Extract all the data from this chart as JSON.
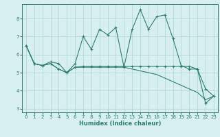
{
  "xlabel": "Humidex (Indice chaleur)",
  "x_values": [
    0,
    1,
    2,
    3,
    4,
    5,
    6,
    7,
    8,
    9,
    10,
    11,
    12,
    13,
    14,
    15,
    16,
    17,
    18,
    19,
    20,
    21,
    22,
    23
  ],
  "line1": [
    6.5,
    5.5,
    5.4,
    5.6,
    5.5,
    5.0,
    5.5,
    7.0,
    6.3,
    7.4,
    7.1,
    7.5,
    5.3,
    7.4,
    8.5,
    7.4,
    8.1,
    8.2,
    6.9,
    5.4,
    5.2,
    5.2,
    4.1,
    3.7
  ],
  "line2": [
    6.5,
    5.5,
    5.4,
    5.5,
    5.2,
    5.0,
    5.3,
    5.35,
    5.35,
    5.35,
    5.35,
    5.35,
    5.35,
    5.35,
    5.35,
    5.35,
    5.35,
    5.35,
    5.35,
    5.35,
    5.35,
    5.2,
    3.3,
    3.7
  ],
  "line3": [
    6.5,
    5.5,
    5.4,
    5.5,
    5.2,
    5.0,
    5.3,
    5.3,
    5.3,
    5.3,
    5.3,
    5.3,
    5.3,
    5.2,
    5.1,
    5.0,
    4.9,
    4.7,
    4.5,
    4.3,
    4.1,
    3.9,
    3.5,
    3.7
  ],
  "line_color": "#2d7d6e",
  "bg_color": "#d8eff0",
  "grid_color": "#b5d8d8",
  "ylim": [
    2.8,
    8.8
  ],
  "yticks": [
    3,
    4,
    5,
    6,
    7,
    8
  ],
  "xticks": [
    0,
    1,
    2,
    3,
    4,
    5,
    6,
    7,
    8,
    9,
    10,
    11,
    12,
    13,
    14,
    15,
    16,
    17,
    18,
    19,
    20,
    21,
    22,
    23
  ]
}
